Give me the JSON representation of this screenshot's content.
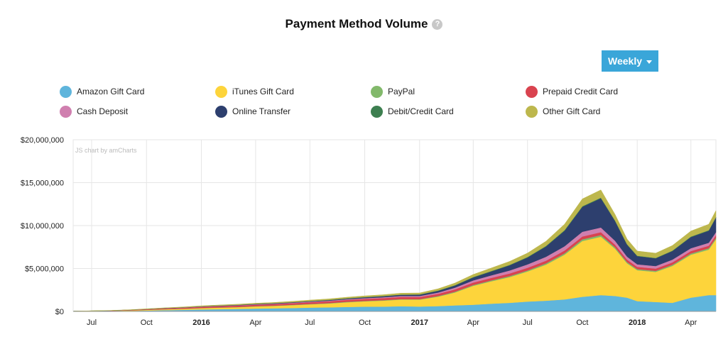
{
  "header": {
    "title": "Payment Method Volume",
    "help_icon": "question-mark-icon",
    "help_glyph": "?"
  },
  "controls": {
    "period_label": "Weekly",
    "period_icon": "caret-down-icon"
  },
  "watermark": "JS chart by amCharts",
  "chart_data": {
    "type": "area",
    "stacked": true,
    "x_range": [
      "2015-05-31",
      "2018-05-13"
    ],
    "ylim": [
      0,
      20000000
    ],
    "y_ticks": [
      0,
      5000000,
      10000000,
      15000000,
      20000000
    ],
    "y_tick_labels": [
      "$0",
      "$5,000,000",
      "$10,000,000",
      "$15,000,000",
      "$20,000,000"
    ],
    "x_ticks": [
      {
        "date": "2015-07-01",
        "label": "Jul",
        "bold": false
      },
      {
        "date": "2015-10-01",
        "label": "Oct",
        "bold": false
      },
      {
        "date": "2016-01-01",
        "label": "2016",
        "bold": true
      },
      {
        "date": "2016-04-01",
        "label": "Apr",
        "bold": false
      },
      {
        "date": "2016-07-01",
        "label": "Jul",
        "bold": false
      },
      {
        "date": "2016-10-01",
        "label": "Oct",
        "bold": false
      },
      {
        "date": "2017-01-01",
        "label": "2017",
        "bold": true
      },
      {
        "date": "2017-04-01",
        "label": "Apr",
        "bold": false
      },
      {
        "date": "2017-07-01",
        "label": "Jul",
        "bold": false
      },
      {
        "date": "2017-10-01",
        "label": "Oct",
        "bold": false
      },
      {
        "date": "2018-01-01",
        "label": "2018",
        "bold": true
      },
      {
        "date": "2018-04-01",
        "label": "Apr",
        "bold": false
      }
    ],
    "grid": true,
    "legend_position": "top",
    "x": [
      "2015-06-01",
      "2015-07-01",
      "2015-08-01",
      "2015-09-01",
      "2015-10-01",
      "2015-11-01",
      "2015-12-01",
      "2016-01-01",
      "2016-02-01",
      "2016-03-01",
      "2016-04-01",
      "2016-05-01",
      "2016-06-01",
      "2016-07-01",
      "2016-08-01",
      "2016-09-01",
      "2016-10-01",
      "2016-11-01",
      "2016-12-01",
      "2017-01-01",
      "2017-02-01",
      "2017-03-01",
      "2017-04-01",
      "2017-05-01",
      "2017-06-01",
      "2017-07-01",
      "2017-08-01",
      "2017-09-01",
      "2017-10-01",
      "2017-11-01",
      "2017-11-25",
      "2017-12-15",
      "2018-01-01",
      "2018-02-01",
      "2018-03-01",
      "2018-04-01",
      "2018-05-01",
      "2018-05-13"
    ],
    "series": [
      {
        "name": "Amazon Gift Card",
        "color": "#5fb5dc",
        "values": [
          10000,
          20000,
          30000,
          60000,
          100000,
          150000,
          180000,
          230000,
          260000,
          290000,
          330000,
          360000,
          400000,
          450000,
          470000,
          520000,
          550000,
          560000,
          600000,
          570000,
          620000,
          700000,
          780000,
          900000,
          1000000,
          1150000,
          1250000,
          1400000,
          1700000,
          1900000,
          1800000,
          1600000,
          1200000,
          1100000,
          1000000,
          1600000,
          1900000,
          1900000
        ]
      },
      {
        "name": "iTunes Gift Card",
        "color": "#fdd43b",
        "values": [
          10000,
          20000,
          30000,
          50000,
          80000,
          100000,
          120000,
          150000,
          180000,
          200000,
          250000,
          280000,
          330000,
          380000,
          450000,
          550000,
          620000,
          700000,
          780000,
          800000,
          1100000,
          1500000,
          2200000,
          2600000,
          3000000,
          3500000,
          4200000,
          5200000,
          6500000,
          6800000,
          5500000,
          4000000,
          3600000,
          3500000,
          4300000,
          5000000,
          5300000,
          6500000
        ]
      },
      {
        "name": "PayPal",
        "color": "#82b96b",
        "values": [
          1000,
          2000,
          3000,
          5000,
          10000,
          10000,
          15000,
          20000,
          20000,
          25000,
          30000,
          30000,
          35000,
          40000,
          45000,
          50000,
          55000,
          55000,
          60000,
          60000,
          70000,
          90000,
          100000,
          110000,
          120000,
          130000,
          150000,
          170000,
          200000,
          200000,
          170000,
          150000,
          130000,
          130000,
          140000,
          150000,
          160000,
          170000
        ]
      },
      {
        "name": "Prepaid Credit Card",
        "color": "#d9434f",
        "values": [
          5000,
          15000,
          25000,
          40000,
          60000,
          90000,
          110000,
          130000,
          150000,
          160000,
          170000,
          180000,
          190000,
          200000,
          210000,
          220000,
          230000,
          240000,
          250000,
          250000,
          260000,
          270000,
          280000,
          290000,
          300000,
          300000,
          310000,
          320000,
          330000,
          330000,
          300000,
          280000,
          260000,
          260000,
          270000,
          280000,
          290000,
          300000
        ]
      },
      {
        "name": "Cash Deposit",
        "color": "#d07faf",
        "values": [
          2000,
          3000,
          5000,
          8000,
          10000,
          15000,
          20000,
          25000,
          30000,
          35000,
          40000,
          45000,
          50000,
          60000,
          70000,
          80000,
          90000,
          100000,
          110000,
          120000,
          150000,
          200000,
          250000,
          300000,
          350000,
          400000,
          450000,
          500000,
          550000,
          550000,
          450000,
          350000,
          300000,
          300000,
          320000,
          330000,
          350000,
          360000
        ]
      },
      {
        "name": "Online Transfer",
        "color": "#2d3f6e",
        "values": [
          2000,
          3000,
          5000,
          8000,
          10000,
          15000,
          20000,
          25000,
          30000,
          35000,
          40000,
          45000,
          50000,
          60000,
          70000,
          80000,
          100000,
          110000,
          130000,
          150000,
          200000,
          250000,
          350000,
          450000,
          600000,
          800000,
          1200000,
          1800000,
          2900000,
          3400000,
          2300000,
          1400000,
          950000,
          900000,
          1000000,
          1300000,
          1400000,
          1700000
        ]
      },
      {
        "name": "Debit/Credit Card",
        "color": "#3d7f50",
        "values": [
          1000,
          2000,
          2000,
          3000,
          5000,
          5000,
          8000,
          10000,
          10000,
          12000,
          15000,
          15000,
          18000,
          20000,
          22000,
          25000,
          28000,
          30000,
          32000,
          30000,
          35000,
          40000,
          45000,
          50000,
          55000,
          60000,
          65000,
          70000,
          75000,
          75000,
          60000,
          50000,
          45000,
          45000,
          50000,
          55000,
          60000,
          60000
        ]
      },
      {
        "name": "Other Gift Card",
        "color": "#bdb74d",
        "values": [
          5000,
          10000,
          15000,
          20000,
          30000,
          40000,
          50000,
          60000,
          70000,
          75000,
          80000,
          90000,
          100000,
          110000,
          120000,
          130000,
          140000,
          150000,
          160000,
          170000,
          200000,
          250000,
          300000,
          350000,
          400000,
          450000,
          550000,
          700000,
          850000,
          900000,
          700000,
          600000,
          550000,
          550000,
          600000,
          650000,
          700000,
          750000
        ]
      }
    ]
  }
}
